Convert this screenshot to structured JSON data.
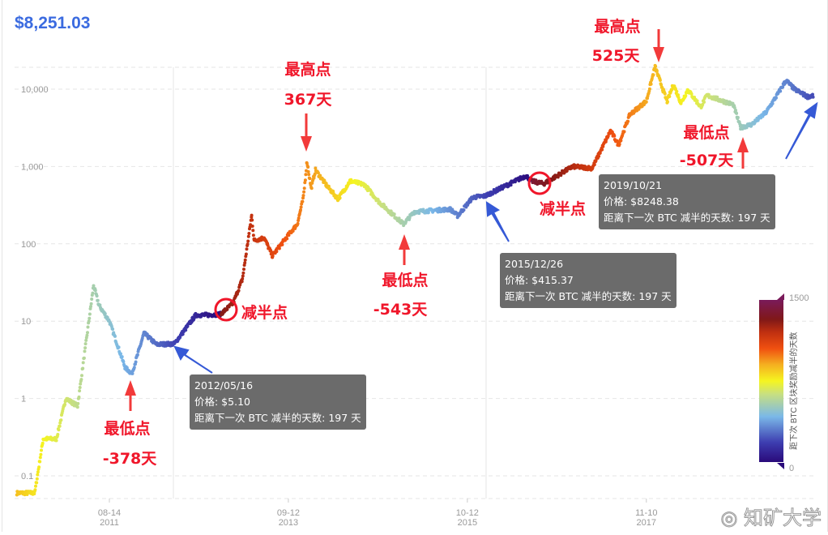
{
  "header": {
    "current_price": "$8,251.03"
  },
  "colors": {
    "price": "#3b6be0",
    "annotation": "#f0162a",
    "arrow_blue": "#3559d6",
    "tooltip_bg": "#6b6b6b"
  },
  "chart_data": {
    "type": "scatter",
    "title": "",
    "xlabel": "",
    "ylabel": "",
    "y_scale": "log",
    "ylim": [
      0.05,
      20000
    ],
    "y_ticks": [
      "0.1",
      "1",
      "10",
      "100",
      "1,000",
      "10,000"
    ],
    "y_tick_values": [
      0.1,
      1,
      10,
      100,
      1000,
      10000
    ],
    "x_ticks": [
      {
        "date": "2011-08-14",
        "label1": "08-14",
        "label2": "2011"
      },
      {
        "date": "2013-09-12",
        "label1": "09-12",
        "label2": "2013"
      },
      {
        "date": "2015-10-12",
        "label1": "10-12",
        "label2": "2015"
      },
      {
        "date": "2017-11-10",
        "label1": "11-10",
        "label2": "2017"
      }
    ],
    "xlim": [
      "2010-07-10",
      "2019-10-25"
    ],
    "grid": true,
    "color_by": "days to next halving",
    "colorbar": {
      "label": "距下次 BTC 区块奖励减半的天数",
      "min": 0,
      "max": 1500,
      "min_label": "0",
      "max_label": "1500",
      "position": "right"
    },
    "series": [
      {
        "points": [
          [
            "2010-07-17",
            0.06
          ],
          [
            "2010-10-01",
            0.06
          ],
          [
            "2010-11-06",
            0.3
          ],
          [
            "2011-01-01",
            0.3
          ],
          [
            "2011-02-10",
            1.0
          ],
          [
            "2011-04-01",
            0.8
          ],
          [
            "2011-06-08",
            29
          ],
          [
            "2011-07-01",
            16
          ],
          [
            "2011-08-14",
            10
          ],
          [
            "2011-10-20",
            2.5
          ],
          [
            "2011-11-18",
            2.1
          ],
          [
            "2012-01-08",
            7
          ],
          [
            "2012-03-01",
            5
          ],
          [
            "2012-05-16",
            5.1
          ],
          [
            "2012-08-15",
            12
          ],
          [
            "2012-10-01",
            12
          ],
          [
            "2012-11-28",
            12.3
          ],
          [
            "2013-01-20",
            17
          ],
          [
            "2013-03-01",
            35
          ],
          [
            "2013-04-09",
            230
          ],
          [
            "2013-04-20",
            110
          ],
          [
            "2013-06-01",
            120
          ],
          [
            "2013-07-06",
            70
          ],
          [
            "2013-09-12",
            130
          ],
          [
            "2013-10-20",
            180
          ],
          [
            "2013-11-15",
            400
          ],
          [
            "2013-11-30",
            1150
          ],
          [
            "2013-12-18",
            520
          ],
          [
            "2014-01-05",
            900
          ],
          [
            "2014-02-25",
            550
          ],
          [
            "2014-04-11",
            380
          ],
          [
            "2014-06-01",
            650
          ],
          [
            "2014-08-01",
            580
          ],
          [
            "2014-10-01",
            350
          ],
          [
            "2015-01-14",
            180
          ],
          [
            "2015-03-01",
            260
          ],
          [
            "2015-08-01",
            280
          ],
          [
            "2015-09-01",
            230
          ],
          [
            "2015-11-04",
            400
          ],
          [
            "2015-12-26",
            415.37
          ],
          [
            "2016-06-17",
            760
          ],
          [
            "2016-07-09",
            650
          ],
          [
            "2016-09-01",
            600
          ],
          [
            "2017-01-01",
            1000
          ],
          [
            "2017-03-25",
            950
          ],
          [
            "2017-06-11",
            2900
          ],
          [
            "2017-07-15",
            1900
          ],
          [
            "2017-09-01",
            4700
          ],
          [
            "2017-11-10",
            7000
          ],
          [
            "2017-12-17",
            19500
          ],
          [
            "2018-02-06",
            6900
          ],
          [
            "2018-03-05",
            11500
          ],
          [
            "2018-04-06",
            6600
          ],
          [
            "2018-05-05",
            9800
          ],
          [
            "2018-06-29",
            5900
          ],
          [
            "2018-07-25",
            8300
          ],
          [
            "2018-11-14",
            6300
          ],
          [
            "2018-12-15",
            3200
          ],
          [
            "2019-02-01",
            3500
          ],
          [
            "2019-04-02",
            5000
          ],
          [
            "2019-05-15",
            8000
          ],
          [
            "2019-06-26",
            13000
          ],
          [
            "2019-08-01",
            10000
          ],
          [
            "2019-09-25",
            8000
          ],
          [
            "2019-10-21",
            8248.38
          ]
        ]
      }
    ],
    "annotations": {
      "peak1": {
        "title": "最高点",
        "days": "367天"
      },
      "low1": {
        "title": "最低点",
        "days": "-378天"
      },
      "halving1": {
        "title": "减半点"
      },
      "low2": {
        "title": "最低点",
        "days": "-543天"
      },
      "halving2": {
        "title": "减半点"
      },
      "peak2": {
        "title": "最高点",
        "days": "525天"
      },
      "low3": {
        "title": "最低点",
        "days": "-507天"
      }
    },
    "tooltips": [
      {
        "date": "2012/05/16",
        "price": "价格: $5.10",
        "days": "距离下一次 BTC 减半的天数: 197 天"
      },
      {
        "date": "2015/12/26",
        "price": "价格: $415.37",
        "days": "距离下一次 BTC 减半的天数: 197 天"
      },
      {
        "date": "2019/10/21",
        "price": "价格: $8248.38",
        "days": "距离下一次 BTC 减半的天数: 197 天"
      }
    ]
  },
  "watermark": {
    "text": "知矿大学"
  }
}
